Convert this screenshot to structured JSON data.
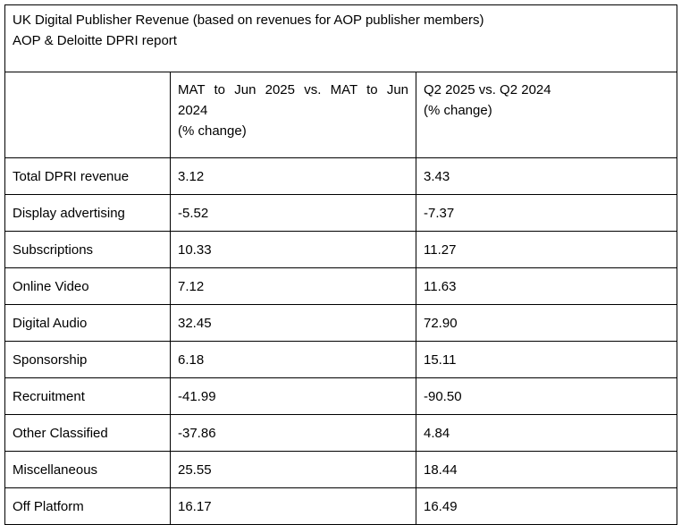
{
  "title": {
    "line1": "UK Digital Publisher Revenue (based on revenues for AOP publisher members)",
    "line2": "AOP & Deloitte DPRI report"
  },
  "columns": {
    "col1": {
      "line1": "MAT to Jun 2025 vs. MAT to Jun",
      "line2": "2024",
      "line3": "(% change)"
    },
    "col2": {
      "line1": "Q2 2025 vs. Q2 2024",
      "line2": "(% change)"
    }
  },
  "rows": [
    {
      "label": "Total DPRI revenue",
      "mat": "3.12",
      "q2": "3.43"
    },
    {
      "label": "Display advertising",
      "mat": "-5.52",
      "q2": "-7.37"
    },
    {
      "label": "Subscriptions",
      "mat": "10.33",
      "q2": "11.27"
    },
    {
      "label": "Online Video",
      "mat": "7.12",
      "q2": "11.63"
    },
    {
      "label": "Digital Audio",
      "mat": "32.45",
      "q2": "72.90"
    },
    {
      "label": "Sponsorship",
      "mat": "6.18",
      "q2": "15.11"
    },
    {
      "label": "Recruitment",
      "mat": "-41.99",
      "q2": "-90.50"
    },
    {
      "label": "Other Classified",
      "mat": "-37.86",
      "q2": "4.84"
    },
    {
      "label": "Miscellaneous",
      "mat": "25.55",
      "q2": "18.44"
    },
    {
      "label": "Off Platform",
      "mat": "16.17",
      "q2": "16.49"
    }
  ]
}
